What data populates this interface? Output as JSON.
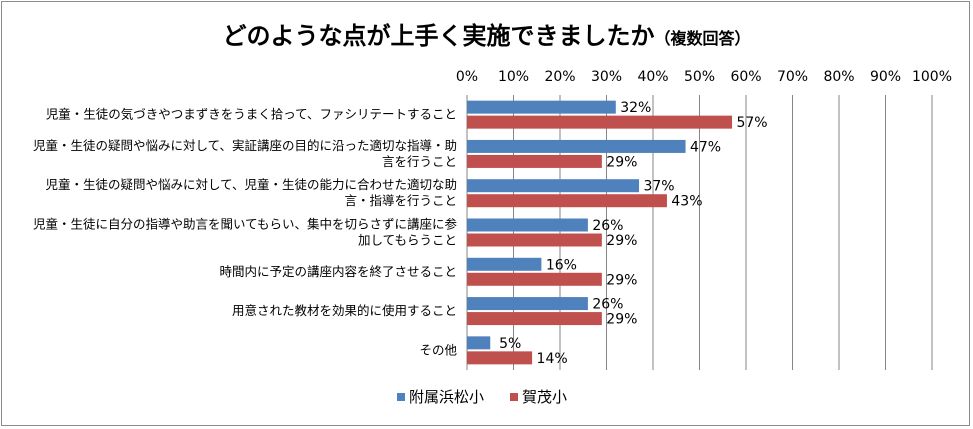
{
  "title": "どのような点が上手く実施できましたか",
  "title_note": "（複数回答）",
  "chart_data": {
    "type": "bar",
    "orientation": "horizontal",
    "title": "どのような点が上手く実施できましたか（複数回答）",
    "categories": [
      [
        "児童・生徒の気づきやつまずきをうまく拾って、ファシリテートすること"
      ],
      [
        "児童・生徒の疑問や悩みに対して、実証講座の目的に沿った適切な指導・助",
        "言を行うこと"
      ],
      [
        "児童・生徒の疑問や悩みに対して、児童・生徒の能力に合わせた適切な助",
        "言・指導を行うこと"
      ],
      [
        "児童・生徒に自分の指導や助言を聞いてもらい、集中を切らさずに講座に参",
        "加してもらうこと"
      ],
      [
        "時間内に予定の講座内容を終了させること"
      ],
      [
        "用意された教材を効果的に使用すること"
      ],
      [
        "その他"
      ]
    ],
    "series": [
      {
        "name": "附属浜松小",
        "color": "#4f81bd",
        "values": [
          32,
          47,
          37,
          26,
          16,
          26,
          5
        ]
      },
      {
        "name": "賀茂小",
        "color": "#c0504d",
        "values": [
          57,
          29,
          43,
          29,
          29,
          29,
          14
        ]
      }
    ],
    "xlim": [
      0,
      100
    ],
    "xticks": [
      0,
      10,
      20,
      30,
      40,
      50,
      60,
      70,
      80,
      90,
      100
    ],
    "tick_suffix": "%",
    "value_suffix": "%",
    "x_axis_position": "top",
    "grid": true,
    "legend_position": "bottom"
  }
}
